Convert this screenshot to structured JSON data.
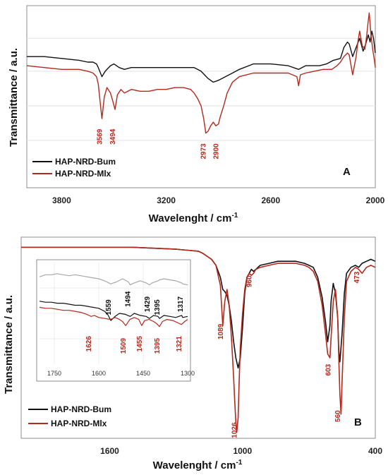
{
  "colors": {
    "black": "#111111",
    "red": "#b5281c",
    "gray": "#a8a8a8",
    "peak_black": "#111111"
  },
  "chart_data": [
    {
      "panel": "A",
      "type": "line",
      "letter": "A",
      "xlabel": "Wavelenght / cm",
      "xlabel_sup": "-1",
      "ylabel": "Transmittance / a.u.",
      "xlim": [
        4000,
        2000
      ],
      "x_reversed": true,
      "xticks": [
        3800,
        3200,
        2600,
        2000
      ],
      "ylim": [
        0,
        1
      ],
      "y_ticks_unlabeled": [
        0.82,
        0.64,
        0.45,
        0.26
      ],
      "series": [
        {
          "name": "HAP-NRD-Bum",
          "color": "#111111",
          "x": [
            4000,
            3900,
            3800,
            3700,
            3650,
            3620,
            3600,
            3590,
            3569,
            3550,
            3520,
            3500,
            3470,
            3440,
            3400,
            3300,
            3200,
            3100,
            3060,
            3040,
            3020,
            3000,
            2980,
            2960,
            2930,
            2900,
            2880,
            2860,
            2820,
            2780,
            2700,
            2600,
            2500,
            2440,
            2400,
            2360,
            2320,
            2280,
            2240,
            2200,
            2180,
            2160,
            2150,
            2130,
            2110,
            2090,
            2070,
            2055,
            2040,
            2030,
            2020,
            2010,
            2000
          ],
          "y": [
            0.72,
            0.72,
            0.71,
            0.7,
            0.69,
            0.69,
            0.68,
            0.66,
            0.61,
            0.64,
            0.67,
            0.68,
            0.66,
            0.65,
            0.66,
            0.66,
            0.66,
            0.66,
            0.66,
            0.66,
            0.65,
            0.64,
            0.62,
            0.6,
            0.58,
            0.59,
            0.6,
            0.61,
            0.63,
            0.65,
            0.68,
            0.68,
            0.67,
            0.65,
            0.67,
            0.67,
            0.67,
            0.68,
            0.7,
            0.71,
            0.77,
            0.8,
            0.79,
            0.72,
            0.77,
            0.82,
            0.75,
            0.79,
            0.84,
            0.8,
            0.86,
            0.82,
            0.74
          ]
        },
        {
          "name": "HAP-NRD-Mlx",
          "color": "#b5281c",
          "x": [
            4000,
            3900,
            3800,
            3700,
            3650,
            3620,
            3600,
            3590,
            3580,
            3569,
            3555,
            3540,
            3520,
            3505,
            3494,
            3480,
            3460,
            3440,
            3400,
            3350,
            3300,
            3250,
            3200,
            3150,
            3100,
            3060,
            3040,
            3020,
            3000,
            2985,
            2973,
            2960,
            2945,
            2930,
            2915,
            2900,
            2890,
            2870,
            2850,
            2820,
            2780,
            2700,
            2600,
            2500,
            2450,
            2440,
            2430,
            2400,
            2350,
            2300,
            2250,
            2220,
            2200,
            2180,
            2160,
            2150,
            2130,
            2110,
            2100,
            2090,
            2075,
            2060,
            2050,
            2040,
            2035,
            2025,
            2015,
            2005,
            2000
          ],
          "y": [
            0.67,
            0.66,
            0.65,
            0.65,
            0.64,
            0.63,
            0.61,
            0.57,
            0.48,
            0.38,
            0.5,
            0.55,
            0.52,
            0.47,
            0.43,
            0.51,
            0.54,
            0.52,
            0.54,
            0.53,
            0.53,
            0.54,
            0.54,
            0.55,
            0.55,
            0.54,
            0.52,
            0.49,
            0.45,
            0.38,
            0.3,
            0.31,
            0.34,
            0.36,
            0.34,
            0.35,
            0.39,
            0.45,
            0.52,
            0.58,
            0.61,
            0.63,
            0.63,
            0.63,
            0.61,
            0.56,
            0.62,
            0.63,
            0.64,
            0.65,
            0.65,
            0.67,
            0.69,
            0.72,
            0.74,
            0.73,
            0.62,
            0.72,
            0.8,
            0.86,
            0.78,
            0.76,
            0.83,
            0.92,
            0.96,
            0.84,
            0.76,
            0.7,
            0.66
          ]
        }
      ],
      "annotations": [
        {
          "text": "3569",
          "x": 3569,
          "y": 0.28,
          "color": "red"
        },
        {
          "text": "3494",
          "x": 3494,
          "y": 0.28,
          "color": "red"
        },
        {
          "text": "2973",
          "x": 2973,
          "y": 0.2,
          "color": "red"
        },
        {
          "text": "2900",
          "x": 2900,
          "y": 0.2,
          "color": "red"
        }
      ],
      "legend_position": "bottom-left"
    },
    {
      "panel": "B",
      "type": "line",
      "letter": "B",
      "xlabel": "Wavelenght / cm",
      "xlabel_sup": "-1",
      "ylabel": "Transmittance / a.u.",
      "xlim": [
        2000,
        400
      ],
      "x_reversed": true,
      "xticks": [
        1600,
        1000,
        400
      ],
      "ylim": [
        0,
        1
      ],
      "series": [
        {
          "name": "HAP-NRD-Bum",
          "color": "#111111",
          "x": [
            2000,
            1900,
            1800,
            1700,
            1600,
            1500,
            1400,
            1300,
            1250,
            1200,
            1180,
            1160,
            1140,
            1120,
            1100,
            1089,
            1080,
            1070,
            1060,
            1050,
            1040,
            1030,
            1020,
            1010,
            1000,
            990,
            980,
            970,
            960,
            950,
            940,
            920,
            880,
            840,
            800,
            760,
            720,
            700,
            680,
            660,
            640,
            625,
            615,
            605,
            600,
            590,
            580,
            570,
            565,
            560,
            550,
            540,
            530,
            510,
            490,
            475,
            460,
            440,
            420,
            400
          ],
          "y": [
            0.95,
            0.95,
            0.95,
            0.95,
            0.95,
            0.95,
            0.945,
            0.94,
            0.935,
            0.93,
            0.92,
            0.905,
            0.89,
            0.86,
            0.8,
            0.74,
            0.73,
            0.71,
            0.66,
            0.58,
            0.48,
            0.4,
            0.35,
            0.4,
            0.55,
            0.72,
            0.8,
            0.82,
            0.84,
            0.83,
            0.84,
            0.86,
            0.87,
            0.88,
            0.88,
            0.88,
            0.87,
            0.86,
            0.85,
            0.8,
            0.7,
            0.58,
            0.48,
            0.56,
            0.68,
            0.77,
            0.72,
            0.6,
            0.44,
            0.38,
            0.52,
            0.72,
            0.82,
            0.85,
            0.86,
            0.85,
            0.87,
            0.88,
            0.89,
            0.88
          ]
        },
        {
          "name": "HAP-NRD-Mlx",
          "color": "#b5281c",
          "x": [
            2000,
            1900,
            1800,
            1700,
            1600,
            1500,
            1400,
            1300,
            1250,
            1200,
            1180,
            1160,
            1140,
            1120,
            1100,
            1089,
            1080,
            1070,
            1060,
            1050,
            1040,
            1035,
            1030,
            1026,
            1020,
            1015,
            1010,
            1000,
            990,
            980,
            970,
            960,
            950,
            940,
            920,
            880,
            840,
            800,
            760,
            720,
            700,
            680,
            660,
            640,
            625,
            615,
            605,
            600,
            590,
            580,
            570,
            565,
            560,
            555,
            550,
            540,
            530,
            510,
            490,
            475,
            460,
            440,
            420,
            400
          ],
          "y": [
            0.95,
            0.95,
            0.95,
            0.95,
            0.95,
            0.95,
            0.945,
            0.94,
            0.935,
            0.93,
            0.92,
            0.905,
            0.89,
            0.86,
            0.76,
            0.56,
            0.68,
            0.74,
            0.66,
            0.5,
            0.3,
            0.18,
            0.08,
            0.03,
            0.1,
            0.28,
            0.45,
            0.62,
            0.74,
            0.8,
            0.82,
            0.81,
            0.82,
            0.84,
            0.85,
            0.86,
            0.87,
            0.87,
            0.87,
            0.86,
            0.85,
            0.83,
            0.78,
            0.66,
            0.52,
            0.42,
            0.4,
            0.5,
            0.68,
            0.74,
            0.6,
            0.4,
            0.22,
            0.12,
            0.28,
            0.6,
            0.78,
            0.83,
            0.85,
            0.84,
            0.82,
            0.85,
            0.86,
            0.85
          ]
        }
      ],
      "annotations": [
        {
          "text": "1089",
          "x": 1089,
          "y": 0.53,
          "color": "red"
        },
        {
          "text": "960",
          "x": 960,
          "y": 0.78,
          "color": "red"
        },
        {
          "text": "1026",
          "x": 1026,
          "y": 0.04,
          "color": "red"
        },
        {
          "text": "603",
          "x": 603,
          "y": 0.34,
          "color": "red"
        },
        {
          "text": "560",
          "x": 560,
          "y": 0.11,
          "color": "red"
        },
        {
          "text": "473",
          "x": 473,
          "y": 0.8,
          "color": "red"
        }
      ],
      "legend_position": "bottom-left"
    },
    {
      "panel": "B-inset",
      "type": "line",
      "xlim": [
        1800,
        1300
      ],
      "x_reversed": true,
      "xticks": [
        1750,
        1600,
        1450,
        1300
      ],
      "ylim": [
        0,
        1
      ],
      "series": [
        {
          "color": "#a8a8a8",
          "x": [
            1800,
            1780,
            1760,
            1740,
            1720,
            1700,
            1680,
            1660,
            1640,
            1620,
            1600,
            1580,
            1560,
            1540,
            1520,
            1500,
            1494,
            1480,
            1460,
            1440,
            1429,
            1420,
            1400,
            1395,
            1380,
            1360,
            1340,
            1320,
            1317,
            1300
          ],
          "y": [
            0.86,
            0.88,
            0.88,
            0.89,
            0.88,
            0.87,
            0.88,
            0.87,
            0.86,
            0.85,
            0.84,
            0.82,
            0.79,
            0.81,
            0.84,
            0.81,
            0.78,
            0.8,
            0.82,
            0.8,
            0.78,
            0.8,
            0.82,
            0.83,
            0.84,
            0.83,
            0.82,
            0.8,
            0.79,
            0.78
          ]
        },
        {
          "color": "#111111",
          "x": [
            1800,
            1780,
            1760,
            1740,
            1720,
            1700,
            1680,
            1660,
            1640,
            1620,
            1600,
            1580,
            1570,
            1559,
            1545,
            1530,
            1510,
            1494,
            1480,
            1460,
            1440,
            1429,
            1415,
            1400,
            1395,
            1380,
            1360,
            1340,
            1320,
            1317,
            1300
          ],
          "y": [
            0.62,
            0.61,
            0.61,
            0.6,
            0.6,
            0.59,
            0.58,
            0.58,
            0.57,
            0.56,
            0.55,
            0.52,
            0.49,
            0.43,
            0.47,
            0.5,
            0.49,
            0.47,
            0.5,
            0.48,
            0.47,
            0.45,
            0.48,
            0.47,
            0.45,
            0.48,
            0.47,
            0.46,
            0.48,
            0.46,
            0.47
          ]
        },
        {
          "color": "#b5281c",
          "x": [
            1800,
            1780,
            1760,
            1740,
            1720,
            1700,
            1680,
            1660,
            1640,
            1626,
            1615,
            1600,
            1580,
            1560,
            1545,
            1530,
            1520,
            1509,
            1495,
            1480,
            1465,
            1455,
            1445,
            1430,
            1415,
            1405,
            1395,
            1385,
            1370,
            1350,
            1335,
            1321,
            1310,
            1300
          ],
          "y": [
            0.56,
            0.55,
            0.55,
            0.54,
            0.53,
            0.53,
            0.52,
            0.51,
            0.49,
            0.47,
            0.48,
            0.46,
            0.45,
            0.44,
            0.46,
            0.44,
            0.42,
            0.38,
            0.44,
            0.46,
            0.44,
            0.38,
            0.43,
            0.44,
            0.42,
            0.4,
            0.37,
            0.42,
            0.44,
            0.43,
            0.41,
            0.39,
            0.42,
            0.44
          ]
        }
      ],
      "annotations": [
        {
          "text": "1559",
          "x": 1559,
          "y": 0.56,
          "color": "black"
        },
        {
          "text": "1494",
          "x": 1494,
          "y": 0.64,
          "color": "black"
        },
        {
          "text": "1429",
          "x": 1429,
          "y": 0.59,
          "color": "black"
        },
        {
          "text": "1395",
          "x": 1395,
          "y": 0.56,
          "color": "black"
        },
        {
          "text": "1317",
          "x": 1317,
          "y": 0.59,
          "color": "black"
        },
        {
          "text": "1626",
          "x": 1626,
          "y": 0.2,
          "color": "red"
        },
        {
          "text": "1509",
          "x": 1509,
          "y": 0.18,
          "color": "red"
        },
        {
          "text": "1455",
          "x": 1455,
          "y": 0.2,
          "color": "red"
        },
        {
          "text": "1395",
          "x": 1395,
          "y": 0.18,
          "color": "red"
        },
        {
          "text": "1321",
          "x": 1321,
          "y": 0.2,
          "color": "red"
        }
      ]
    }
  ]
}
